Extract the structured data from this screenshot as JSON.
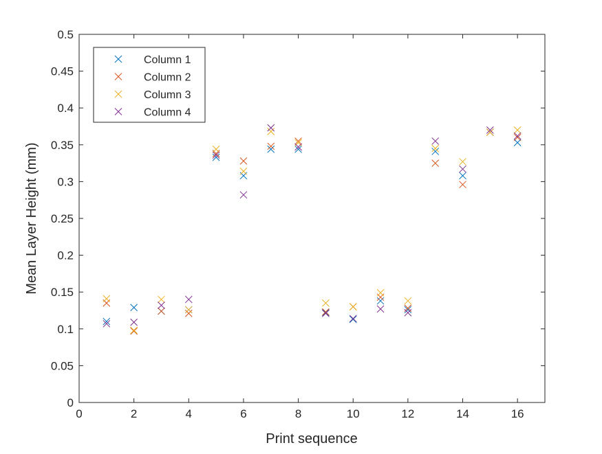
{
  "chart_data": {
    "type": "scatter",
    "marker": "x",
    "xlabel": "Print sequence",
    "ylabel": "Mean Layer Height (mm)",
    "xlim": [
      0,
      17
    ],
    "ylim": [
      0,
      0.5
    ],
    "xticks": [
      0,
      2,
      4,
      6,
      8,
      10,
      12,
      14,
      16
    ],
    "yticks": [
      0,
      0.05,
      0.1,
      0.15,
      0.2,
      0.25,
      0.3,
      0.35,
      0.4,
      0.45,
      0.5
    ],
    "xtick_labels": [
      "0",
      "2",
      "4",
      "6",
      "8",
      "10",
      "12",
      "14",
      "16"
    ],
    "ytick_labels": [
      "0",
      "0.05",
      "0.1",
      "0.15",
      "0.2",
      "0.25",
      "0.3",
      "0.35",
      "0.4",
      "0.45",
      "0.5"
    ],
    "grid": false,
    "legend_position": "top-left",
    "x": [
      1,
      2,
      3,
      4,
      5,
      6,
      7,
      8,
      9,
      10,
      11,
      12,
      13,
      14,
      15,
      16
    ],
    "series": [
      {
        "name": "Column 1",
        "color": "#0072BD",
        "values": [
          0.11,
          0.129,
          0.124,
          0.126,
          0.333,
          0.308,
          0.344,
          0.344,
          0.122,
          0.113,
          0.138,
          0.126,
          0.341,
          0.308,
          0.367,
          0.353
        ]
      },
      {
        "name": "Column 2",
        "color": "#D95319",
        "values": [
          0.135,
          0.097,
          0.124,
          0.121,
          0.338,
          0.328,
          0.348,
          0.355,
          0.123,
          0.13,
          0.143,
          0.128,
          0.325,
          0.296,
          0.367,
          0.36
        ]
      },
      {
        "name": "Column 3",
        "color": "#EDB120",
        "values": [
          0.141,
          0.098,
          0.14,
          0.126,
          0.344,
          0.314,
          0.368,
          0.353,
          0.135,
          0.13,
          0.149,
          0.138,
          0.345,
          0.327,
          0.367,
          0.37
        ]
      },
      {
        "name": "Column 4",
        "color": "#7E2F8E",
        "values": [
          0.107,
          0.109,
          0.132,
          0.14,
          0.336,
          0.282,
          0.373,
          0.347,
          0.121,
          0.114,
          0.127,
          0.122,
          0.355,
          0.317,
          0.37,
          0.362
        ]
      }
    ]
  }
}
